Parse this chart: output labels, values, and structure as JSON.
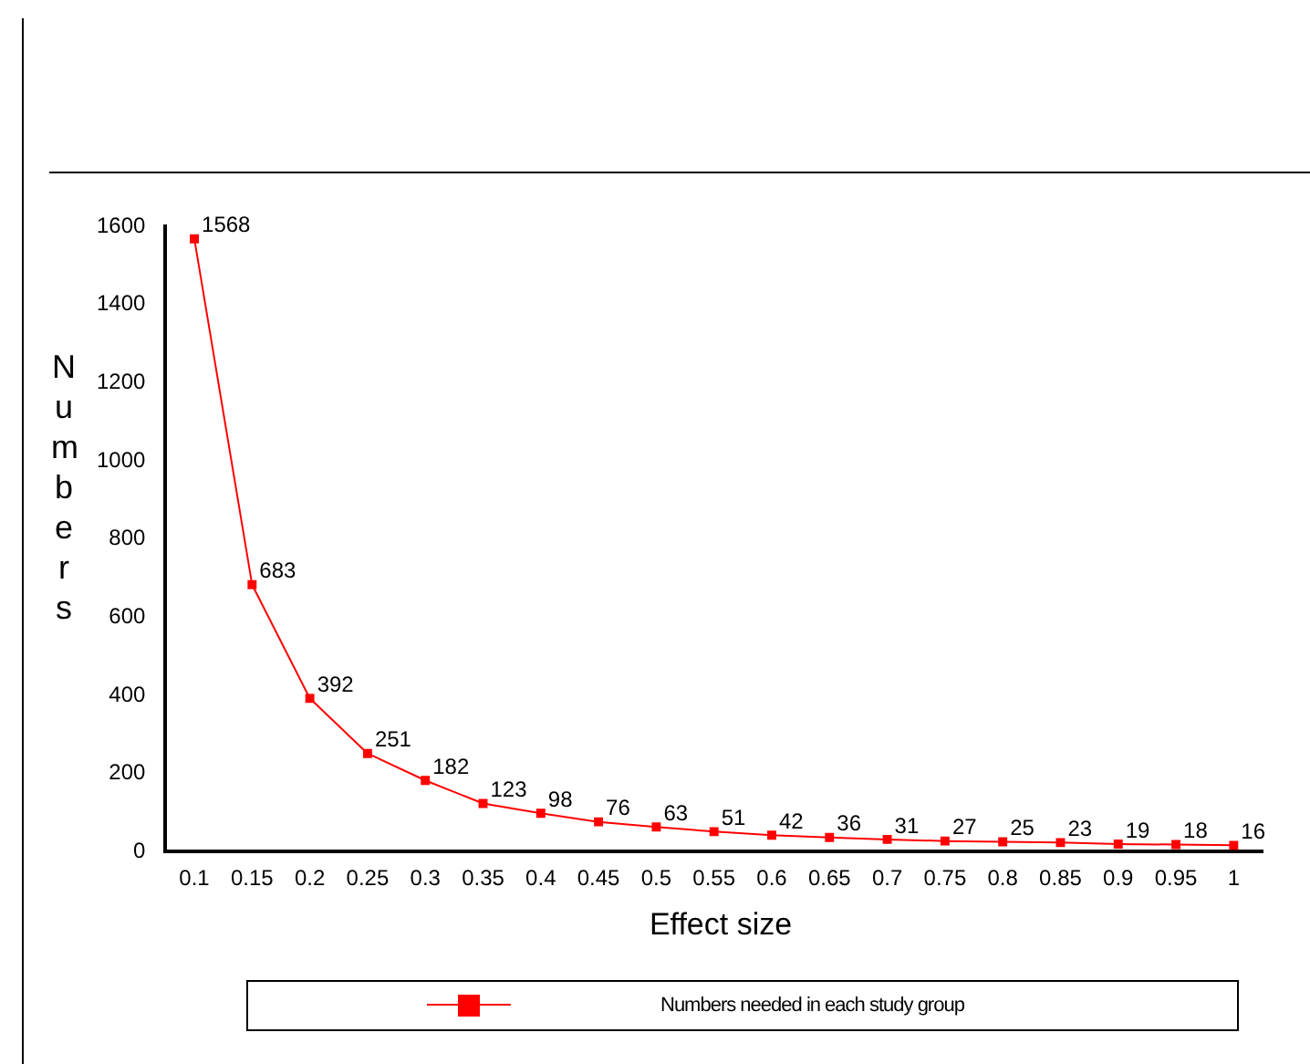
{
  "chart_data": {
    "type": "line",
    "xlabel": "Effect size",
    "ylabel": "Numbers",
    "categories": [
      "0.1",
      "0.15",
      "0.2",
      "0.25",
      "0.3",
      "0.35",
      "0.4",
      "0.45",
      "0.5",
      "0.55",
      "0.6",
      "0.65",
      "0.7",
      "0.75",
      "0.8",
      "0.85",
      "0.9",
      "0.95",
      "1"
    ],
    "series": [
      {
        "name": "Numbers needed in each study group",
        "color": "#ff0000",
        "values": [
          1568,
          683,
          392,
          251,
          182,
          123,
          98,
          76,
          63,
          51,
          42,
          36,
          31,
          27,
          25,
          23,
          19,
          18,
          16
        ]
      }
    ],
    "ylim": [
      0,
      1600
    ],
    "yticks": [
      0,
      200,
      400,
      600,
      800,
      1000,
      1200,
      1400,
      1600
    ],
    "grid": false,
    "legend": "bottom",
    "marker": "square",
    "line_style": "solid",
    "data_labels": true
  }
}
